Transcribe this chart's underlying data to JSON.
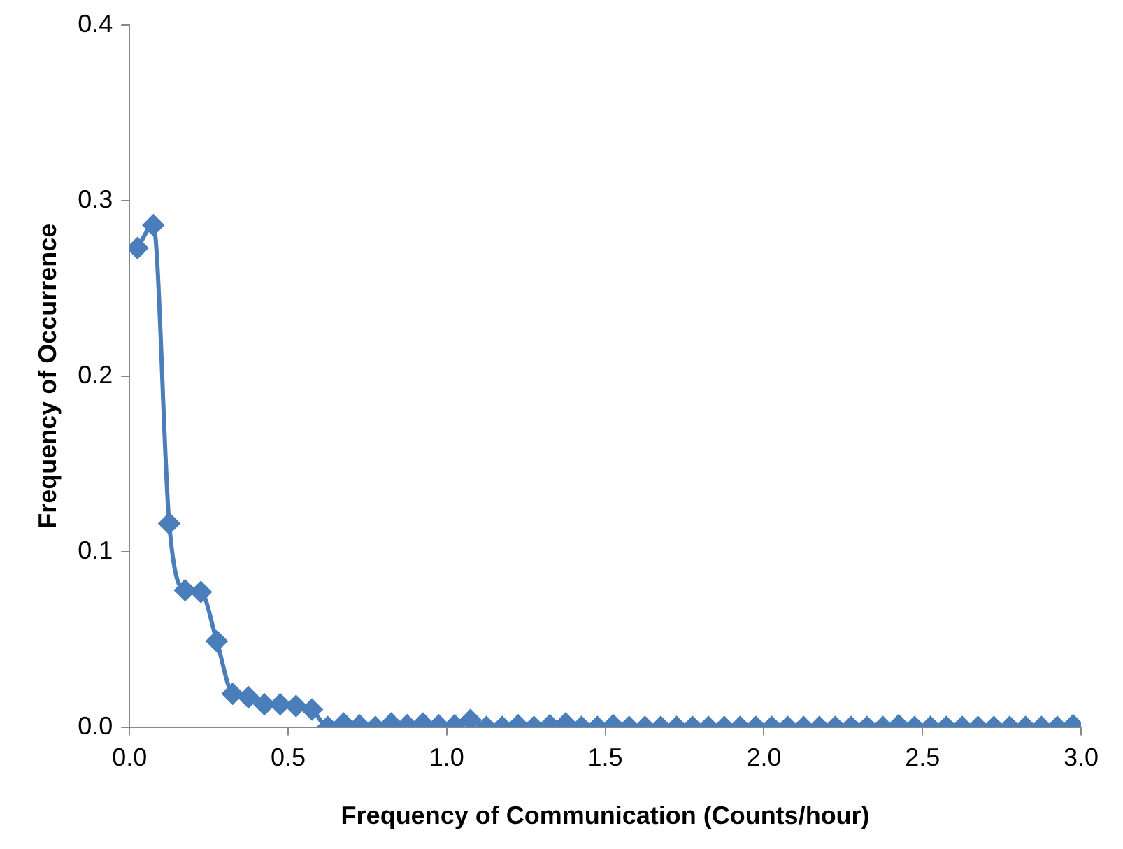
{
  "chart_data": {
    "type": "line",
    "xlabel": "Frequency of Communication (Counts/hour)",
    "ylabel": "Frequency of Occurrence",
    "x": [
      0.025,
      0.075,
      0.125,
      0.175,
      0.225,
      0.275,
      0.325,
      0.375,
      0.425,
      0.475,
      0.525,
      0.575,
      0.625,
      0.675,
      0.725,
      0.775,
      0.825,
      0.875,
      0.925,
      0.975,
      1.025,
      1.075,
      1.125,
      1.175,
      1.225,
      1.275,
      1.325,
      1.375,
      1.425,
      1.475,
      1.525,
      1.575,
      1.625,
      1.675,
      1.725,
      1.775,
      1.825,
      1.875,
      1.925,
      1.975,
      2.025,
      2.075,
      2.125,
      2.175,
      2.225,
      2.275,
      2.325,
      2.375,
      2.425,
      2.475,
      2.525,
      2.575,
      2.625,
      2.675,
      2.725,
      2.775,
      2.825,
      2.875,
      2.925,
      2.975
    ],
    "series": [
      {
        "color": "#4a7ebb",
        "values": [
          0.273,
          0.286,
          0.116,
          0.078,
          0.077,
          0.049,
          0.019,
          0.017,
          0.013,
          0.013,
          0.012,
          0.01,
          0.0,
          0.002,
          0.001,
          0.0,
          0.002,
          0.001,
          0.002,
          0.001,
          0.001,
          0.004,
          0.0,
          0.0,
          0.001,
          0.0,
          0.001,
          0.002,
          0.0,
          0.0,
          0.001,
          0.0,
          0.0,
          0.0,
          0.0,
          0.0,
          0.0,
          0.0,
          0.0,
          0.0,
          0.0,
          0.0,
          0.0,
          0.0,
          0.0,
          0.0,
          0.0,
          0.0,
          0.001,
          0.0,
          0.0,
          0.0,
          0.0,
          0.0,
          0.0,
          0.0,
          0.0,
          0.0,
          0.0,
          0.001
        ]
      }
    ],
    "xlim": [
      0,
      3
    ],
    "xticks": [
      {
        "value": 0,
        "label": "0.0"
      },
      0.5,
      {
        "value": 1,
        "label": "1.0"
      },
      1.5,
      {
        "value": 2,
        "label": "2.0"
      },
      2.5,
      {
        "value": 3,
        "label": "3.0"
      }
    ],
    "ylim": [
      0,
      0.4
    ],
    "yticks": [
      {
        "value": 0,
        "label": "0.0"
      },
      0.1,
      0.2,
      0.3,
      0.4
    ],
    "grid": false,
    "legend": false,
    "marker": "diamond",
    "line_style": "solid"
  }
}
